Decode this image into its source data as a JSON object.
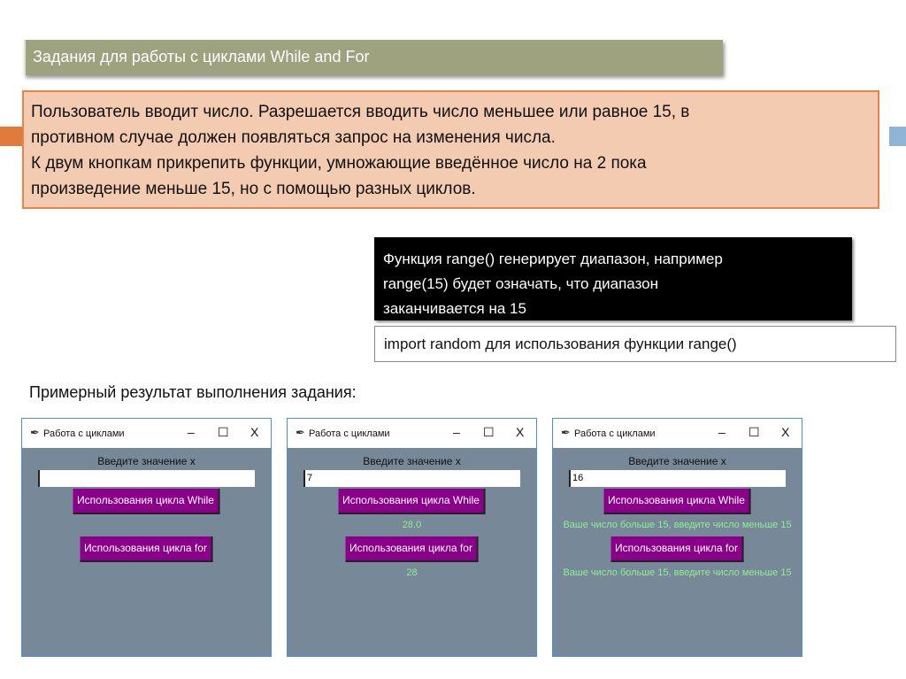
{
  "slide": {
    "title": "Задания для работы с циклами While and For",
    "task_lines": [
      "Пользователь вводит число. Разрешается вводить число меньшее или равное 15, в",
      "противном случае должен появляться запрос на изменения числа.",
      "К двум кнопкам прикрепить функции, умножающие введённое число на 2 пока",
      "произведение меньше 15, но с помощью разных циклов."
    ],
    "range_lines": [
      "Функция range() генерирует диапазон, например",
      "range(15) будет означать, что диапазон",
      "заканчивается на 15"
    ],
    "import_note": "import random для использования функции range()",
    "example_label": "Примерный результат выполнения задания:"
  },
  "windows": [
    {
      "title": "Работа с циклами",
      "minimize": "–",
      "maximize": "☐",
      "close": "X",
      "prompt": "Введите значение x",
      "entry": "",
      "while_btn": "Использования цикла While",
      "while_out": "",
      "for_btn": "Использования цикла for",
      "for_out": ""
    },
    {
      "title": "Работа с циклами",
      "minimize": "–",
      "maximize": "☐",
      "close": "X",
      "prompt": "Введите значение x",
      "entry": "7",
      "while_btn": "Использования цикла While",
      "while_out": "28.0",
      "for_btn": "Использования цикла for",
      "for_out": "28"
    },
    {
      "title": "Работа с циклами",
      "minimize": "–",
      "maximize": "☐",
      "close": "X",
      "prompt": "Введите значение x",
      "entry": "16",
      "while_btn": "Использования цикла While",
      "while_out": "Ваше число больше 15, введите число меньше 15",
      "for_btn": "Использования цикла for",
      "for_out": "Ваше число больше 15, введите число меньше 15"
    }
  ],
  "colors": {
    "title_bg": "#9ea27e",
    "task_bg": "#f3cbb1",
    "task_border": "#e8844a",
    "window_bg": "#778899",
    "button_bg": "#8b008b",
    "output_text": "#90ee90"
  }
}
